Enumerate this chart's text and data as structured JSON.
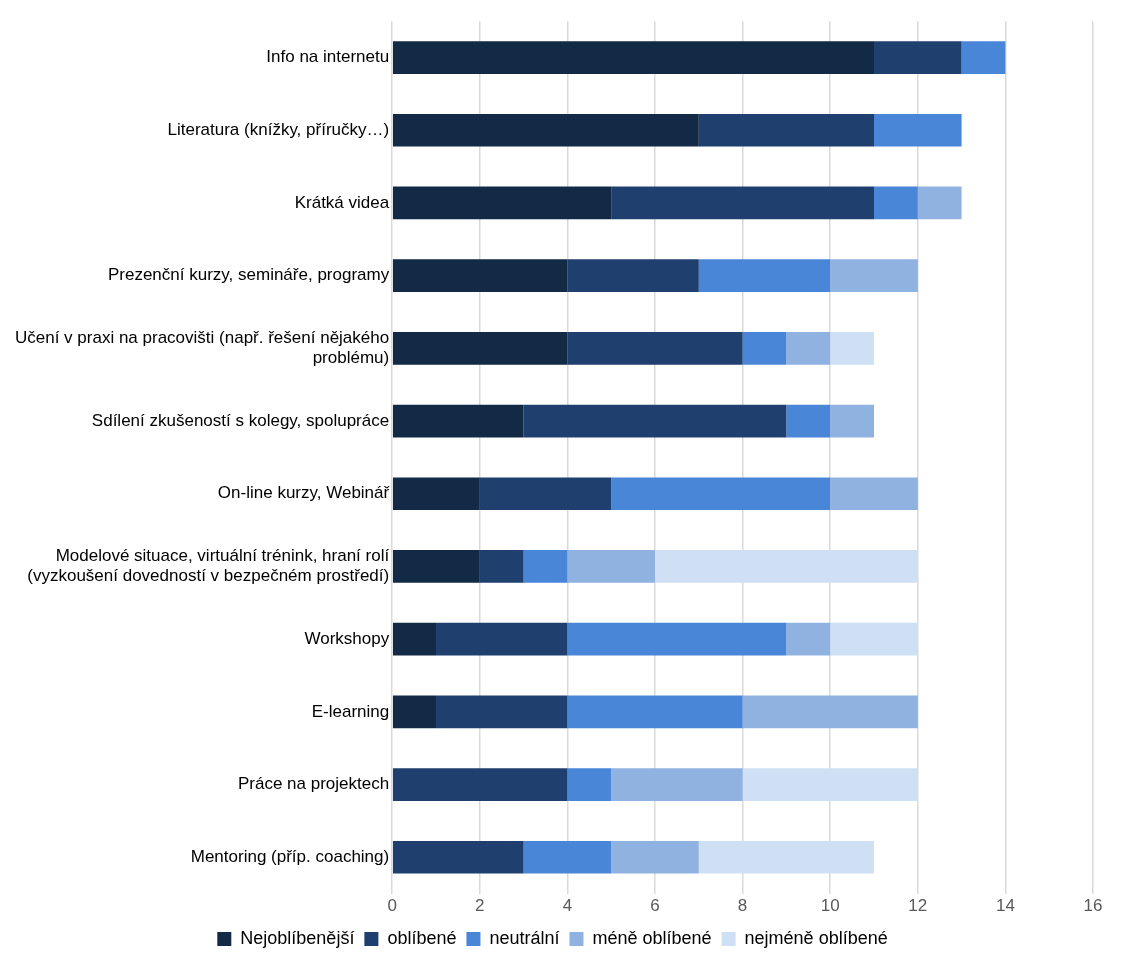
{
  "chart_data": {
    "type": "bar",
    "orientation": "horizontal",
    "stacked": true,
    "categories": [
      "Info na internetu",
      "Literatura (knížky, příručky…)",
      "Krátká videa",
      "Prezenční kurzy, semináře, programy",
      "Učení v praxi na pracovišti (např. řešení nějakého problému)",
      "Sdílení zkušeností s kolegy, spolupráce",
      "On-line kurzy, Webinář",
      "Modelové situace, virtuální trénink, hraní rolí (vyzkoušení dovedností v bezpečném prostředí)",
      "Workshopy",
      "E-learning",
      "Práce na projektech",
      "Mentoring (příp. coaching)"
    ],
    "series": [
      {
        "name": "Nejoblíbenější",
        "color": "#132a47",
        "values": [
          11,
          7,
          5,
          4,
          4,
          3,
          2,
          2,
          1,
          1,
          0,
          0
        ]
      },
      {
        "name": "oblíbené",
        "color": "#1f3f6e",
        "values": [
          2,
          4,
          6,
          3,
          4,
          6,
          3,
          1,
          3,
          3,
          4,
          3
        ]
      },
      {
        "name": "neutrální",
        "color": "#4a86d8",
        "values": [
          1,
          2,
          1,
          3,
          1,
          1,
          5,
          1,
          5,
          4,
          1,
          2
        ]
      },
      {
        "name": "méně oblíbené",
        "color": "#8fb2e0",
        "values": [
          0,
          0,
          1,
          2,
          1,
          1,
          2,
          2,
          1,
          4,
          3,
          2
        ]
      },
      {
        "name": "nejméně oblíbené",
        "color": "#cfe0f5",
        "values": [
          0,
          0,
          0,
          0,
          1,
          0,
          0,
          6,
          2,
          0,
          4,
          4
        ]
      }
    ],
    "xlim": [
      0,
      16
    ],
    "xticks": [
      0,
      2,
      4,
      6,
      8,
      10,
      12,
      14,
      16
    ],
    "grid": "x",
    "legend": "bottom"
  }
}
